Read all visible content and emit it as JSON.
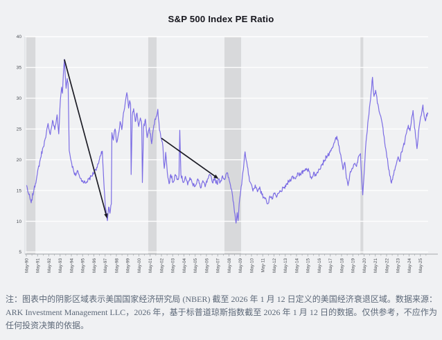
{
  "page": {
    "background": "#f0f1f3"
  },
  "chart_data": {
    "type": "line",
    "title": "S&P 500 Index PE Ratio",
    "legend": false,
    "grid": true,
    "x_axis": {
      "start_year": 1990.37,
      "interval_years": 1,
      "labels": [
        "May-90",
        "May-91",
        "May-92",
        "May-93",
        "May-94",
        "May-95",
        "May-96",
        "May-97",
        "May-98",
        "May-99",
        "May-00",
        "May-01",
        "May-02",
        "May-03",
        "May-04",
        "May-05",
        "May-06",
        "May-07",
        "May-08",
        "May-09",
        "May-10",
        "May-11",
        "May-12",
        "May-13",
        "May-14",
        "May-15",
        "May-16",
        "May-17",
        "May-18",
        "May-19",
        "May-20",
        "May-21",
        "May-22",
        "May-23",
        "May-24",
        "May-25"
      ]
    },
    "y_axis": {
      "min": 5,
      "max": 40,
      "ticks": [
        5,
        10,
        15,
        20,
        25,
        30,
        35,
        40
      ]
    },
    "series": [
      {
        "name": "S&P 500 Index PE Ratio",
        "color": "#7b6ce4",
        "points": [
          [
            1990.4,
            15.8
          ],
          [
            1990.55,
            14.6
          ],
          [
            1990.8,
            13.0
          ],
          [
            1991.05,
            15.2
          ],
          [
            1991.3,
            17.2
          ],
          [
            1991.6,
            20.0
          ],
          [
            1991.85,
            22.0
          ],
          [
            1992.1,
            23.6
          ],
          [
            1992.3,
            25.9
          ],
          [
            1992.5,
            24.1
          ],
          [
            1992.7,
            26.4
          ],
          [
            1992.9,
            24.9
          ],
          [
            1993.1,
            27.3
          ],
          [
            1993.25,
            24.2
          ],
          [
            1993.4,
            29.8
          ],
          [
            1993.5,
            31.8
          ],
          [
            1993.58,
            30.8
          ],
          [
            1993.68,
            34.6
          ],
          [
            1993.75,
            36.3
          ],
          [
            1993.83,
            33.6
          ],
          [
            1993.9,
            31.6
          ],
          [
            1994.0,
            33.2
          ],
          [
            1994.08,
            32.4
          ],
          [
            1994.18,
            21.5
          ],
          [
            1994.35,
            19.8
          ],
          [
            1994.55,
            18.4
          ],
          [
            1994.75,
            17.4
          ],
          [
            1994.95,
            18.2
          ],
          [
            1995.15,
            17.0
          ],
          [
            1995.4,
            16.5
          ],
          [
            1995.65,
            16.2
          ],
          [
            1995.9,
            16.9
          ],
          [
            1996.15,
            17.3
          ],
          [
            1996.45,
            18.2
          ],
          [
            1996.75,
            19.3
          ],
          [
            1997.0,
            20.8
          ],
          [
            1997.12,
            21.4
          ],
          [
            1997.25,
            16.5
          ],
          [
            1997.38,
            12.6
          ],
          [
            1997.5,
            10.8
          ],
          [
            1997.57,
            10.1
          ],
          [
            1997.68,
            12.3
          ],
          [
            1997.8,
            11.3
          ],
          [
            1997.92,
            12.8
          ],
          [
            1997.97,
            24.4
          ],
          [
            1998.1,
            23.2
          ],
          [
            1998.25,
            25.0
          ],
          [
            1998.4,
            22.8
          ],
          [
            1998.55,
            24.2
          ],
          [
            1998.7,
            26.2
          ],
          [
            1998.85,
            24.9
          ],
          [
            1999.0,
            27.6
          ],
          [
            1999.15,
            29.2
          ],
          [
            1999.3,
            30.9
          ],
          [
            1999.45,
            28.4
          ],
          [
            1999.55,
            29.6
          ],
          [
            1999.63,
            29.0
          ],
          [
            1999.68,
            17.6
          ],
          [
            1999.78,
            27.2
          ],
          [
            1999.9,
            28.3
          ],
          [
            2000.05,
            26.2
          ],
          [
            2000.2,
            27.6
          ],
          [
            2000.35,
            25.4
          ],
          [
            2000.5,
            26.8
          ],
          [
            2000.62,
            25.6
          ],
          [
            2000.68,
            16.3
          ],
          [
            2000.78,
            25.2
          ],
          [
            2000.95,
            26.6
          ],
          [
            2001.1,
            23.6
          ],
          [
            2001.3,
            25.2
          ],
          [
            2001.5,
            22.6
          ],
          [
            2001.7,
            25.6
          ],
          [
            2001.9,
            27.0
          ],
          [
            2002.05,
            28.2
          ],
          [
            2002.2,
            24.8
          ],
          [
            2002.37,
            23.5
          ],
          [
            2002.5,
            22.2
          ],
          [
            2002.62,
            18.6
          ],
          [
            2002.75,
            21.2
          ],
          [
            2002.9,
            17.8
          ],
          [
            2003.05,
            16.1
          ],
          [
            2003.2,
            17.6
          ],
          [
            2003.4,
            16.3
          ],
          [
            2003.6,
            17.6
          ],
          [
            2003.8,
            16.9
          ],
          [
            2003.93,
            17.4
          ],
          [
            2004.0,
            24.8
          ],
          [
            2004.1,
            17.6
          ],
          [
            2004.3,
            16.3
          ],
          [
            2004.5,
            17.3
          ],
          [
            2004.7,
            15.9
          ],
          [
            2004.9,
            17.1
          ],
          [
            2005.1,
            16.2
          ],
          [
            2005.35,
            15.7
          ],
          [
            2005.6,
            16.9
          ],
          [
            2005.85,
            15.4
          ],
          [
            2006.05,
            16.6
          ],
          [
            2006.25,
            15.6
          ],
          [
            2006.5,
            16.9
          ],
          [
            2006.7,
            17.5
          ],
          [
            2006.9,
            16.3
          ],
          [
            2007.1,
            17.1
          ],
          [
            2007.3,
            16.1
          ],
          [
            2007.45,
            16.8
          ],
          [
            2007.6,
            16.4
          ],
          [
            2007.8,
            17.4
          ],
          [
            2008.0,
            16.8
          ],
          [
            2008.2,
            17.9
          ],
          [
            2008.4,
            16.6
          ],
          [
            2008.6,
            15.2
          ],
          [
            2008.78,
            13.0
          ],
          [
            2008.9,
            11.2
          ],
          [
            2009.0,
            9.7
          ],
          [
            2009.1,
            11.4
          ],
          [
            2009.18,
            10.1
          ],
          [
            2009.32,
            13.6
          ],
          [
            2009.5,
            16.0
          ],
          [
            2009.65,
            18.4
          ],
          [
            2009.8,
            21.3
          ],
          [
            2009.95,
            19.6
          ],
          [
            2010.1,
            17.6
          ],
          [
            2010.3,
            16.2
          ],
          [
            2010.5,
            14.9
          ],
          [
            2010.7,
            15.9
          ],
          [
            2010.9,
            14.8
          ],
          [
            2011.1,
            15.6
          ],
          [
            2011.3,
            14.3
          ],
          [
            2011.5,
            13.9
          ],
          [
            2011.7,
            13.3
          ],
          [
            2011.85,
            12.9
          ],
          [
            2012.0,
            14.1
          ],
          [
            2012.2,
            13.6
          ],
          [
            2012.4,
            14.5
          ],
          [
            2012.6,
            13.9
          ],
          [
            2012.8,
            14.6
          ],
          [
            2013.0,
            14.9
          ],
          [
            2013.25,
            15.4
          ],
          [
            2013.5,
            16.0
          ],
          [
            2013.75,
            16.6
          ],
          [
            2014.0,
            17.3
          ],
          [
            2014.25,
            16.9
          ],
          [
            2014.5,
            17.9
          ],
          [
            2014.75,
            17.5
          ],
          [
            2015.0,
            18.2
          ],
          [
            2015.25,
            18.6
          ],
          [
            2015.5,
            18.1
          ],
          [
            2015.7,
            16.9
          ],
          [
            2015.9,
            18.0
          ],
          [
            2016.1,
            17.4
          ],
          [
            2016.35,
            18.5
          ],
          [
            2016.6,
            19.2
          ],
          [
            2016.85,
            19.9
          ],
          [
            2017.1,
            20.6
          ],
          [
            2017.35,
            21.2
          ],
          [
            2017.6,
            22.0
          ],
          [
            2017.8,
            23.2
          ],
          [
            2017.95,
            23.8
          ],
          [
            2018.1,
            22.4
          ],
          [
            2018.3,
            20.8
          ],
          [
            2018.5,
            18.4
          ],
          [
            2018.65,
            19.6
          ],
          [
            2018.8,
            17.0
          ],
          [
            2018.95,
            15.8
          ],
          [
            2019.1,
            17.6
          ],
          [
            2019.3,
            18.6
          ],
          [
            2019.5,
            19.3
          ],
          [
            2019.7,
            18.9
          ],
          [
            2019.9,
            20.6
          ],
          [
            2020.05,
            21.0
          ],
          [
            2020.15,
            17.5
          ],
          [
            2020.25,
            14.3
          ],
          [
            2020.4,
            18.5
          ],
          [
            2020.55,
            23.0
          ],
          [
            2020.7,
            26.0
          ],
          [
            2020.85,
            28.5
          ],
          [
            2021.0,
            31.0
          ],
          [
            2021.12,
            33.4
          ],
          [
            2021.25,
            30.3
          ],
          [
            2021.4,
            31.3
          ],
          [
            2021.55,
            29.2
          ],
          [
            2021.75,
            27.6
          ],
          [
            2021.95,
            26.2
          ],
          [
            2022.15,
            23.8
          ],
          [
            2022.35,
            21.2
          ],
          [
            2022.5,
            19.2
          ],
          [
            2022.65,
            17.4
          ],
          [
            2022.8,
            16.2
          ],
          [
            2022.95,
            17.4
          ],
          [
            2023.1,
            18.3
          ],
          [
            2023.25,
            19.4
          ],
          [
            2023.4,
            20.5
          ],
          [
            2023.55,
            19.7
          ],
          [
            2023.7,
            21.3
          ],
          [
            2023.85,
            22.2
          ],
          [
            2024.0,
            23.1
          ],
          [
            2024.15,
            24.4
          ],
          [
            2024.3,
            25.6
          ],
          [
            2024.45,
            24.7
          ],
          [
            2024.6,
            26.8
          ],
          [
            2024.72,
            28.0
          ],
          [
            2024.85,
            25.2
          ],
          [
            2025.0,
            23.2
          ],
          [
            2025.07,
            21.8
          ],
          [
            2025.2,
            24.4
          ],
          [
            2025.35,
            26.4
          ],
          [
            2025.5,
            27.8
          ],
          [
            2025.6,
            28.9
          ],
          [
            2025.72,
            27.0
          ],
          [
            2025.82,
            26.3
          ],
          [
            2025.92,
            27.4
          ],
          [
            2026.04,
            27.5
          ]
        ]
      }
    ],
    "recession_bands": {
      "label": "NBER US recession periods (shaded)",
      "color": "#d8d9db",
      "ranges": [
        [
          1990.37,
          1991.18
        ],
        [
          2001.2,
          2001.94
        ],
        [
          2007.97,
          2009.45
        ],
        [
          2020.05,
          2020.3
        ]
      ]
    },
    "arrows": [
      {
        "from": [
          1993.75,
          36.3
        ],
        "to": [
          1997.55,
          10.45
        ],
        "color": "#1b1b24"
      },
      {
        "from": [
          2002.37,
          23.5
        ],
        "to": [
          2007.45,
          16.9
        ],
        "color": "#1b1b24"
      }
    ],
    "colors": {
      "grid": "#ffffff",
      "axis": "#a3a7ab",
      "plot_left_edge": "#d9dcdf",
      "tick_text": "#4a4e54",
      "title_text": "#15151c"
    }
  },
  "footer": {
    "note": "注：图表中的阴影区域表示美国国家经济研究局 (NBER) 截至 2026 年 1 月 12 日定义的美国经济衰退区域。数据来源：ARK Investment Management LLC，2026 年，基于标普道琼斯指数截至 2026 年 1 月 12 日的数据。仅供参考，不应作为任何投资决策的依据。"
  }
}
